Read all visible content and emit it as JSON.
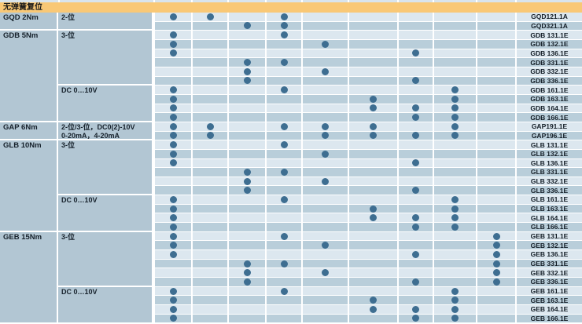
{
  "page_title": "无弹簧复位",
  "colors": {
    "header_bg": "#F9C876",
    "row_light": "#DCE7EF",
    "row_dark": "#B9CEDA",
    "label_bg": "#B2C6D3",
    "dot": "#3E6E91",
    "text": "#131D26"
  },
  "table": {
    "dot_column_count": 9,
    "groups": [
      {
        "family": "GQD 2Nm",
        "sections": [
          {
            "lines": [
              "2-位"
            ],
            "row_count": 2
          }
        ]
      },
      {
        "family": "GDB 5Nm",
        "sections": [
          {
            "lines": [
              "3-位"
            ],
            "row_count": 6
          },
          {
            "lines": [
              "DC 0…10V"
            ],
            "row_count": 4
          }
        ]
      },
      {
        "family": "GAP 6Nm",
        "sections": [
          {
            "lines": [
              "2-位/3-位，DC0(2)-10V",
              "0-20mA，4-20mA"
            ],
            "row_count": 2
          }
        ]
      },
      {
        "family": "GLB 10Nm",
        "sections": [
          {
            "lines": [
              "3-位"
            ],
            "row_count": 6
          },
          {
            "lines": [
              "DC 0…10V"
            ],
            "row_count": 4
          }
        ]
      },
      {
        "family": "GEB 15Nm",
        "sections": [
          {
            "lines": [
              "3-位"
            ],
            "row_count": 6
          },
          {
            "lines": [
              "DC 0…10V"
            ],
            "row_count": 4
          }
        ]
      }
    ],
    "rows": [
      {
        "code": "GQD121.1A",
        "dots": [
          1,
          2,
          4
        ]
      },
      {
        "code": "GQD321.1A",
        "dots": [
          3,
          4
        ]
      },
      {
        "code": "GDB 131.1E",
        "dots": [
          1,
          4
        ]
      },
      {
        "code": "GDB 132.1E",
        "dots": [
          1,
          5
        ]
      },
      {
        "code": "GDB 136.1E",
        "dots": [
          1,
          7
        ]
      },
      {
        "code": "GDB 331.1E",
        "dots": [
          3,
          4
        ]
      },
      {
        "code": "GDB 332.1E",
        "dots": [
          3,
          5
        ]
      },
      {
        "code": "GDB 336.1E",
        "dots": [
          3,
          7
        ]
      },
      {
        "code": "GDB 161.1E",
        "dots": [
          1,
          4,
          8
        ]
      },
      {
        "code": "GDB 163.1E",
        "dots": [
          1,
          6,
          8
        ]
      },
      {
        "code": "GDB 164.1E",
        "dots": [
          1,
          6,
          7,
          8
        ]
      },
      {
        "code": "GDB 166.1E",
        "dots": [
          1,
          7,
          8
        ]
      },
      {
        "code": "GAP191.1E",
        "dots": [
          1,
          2,
          4,
          5,
          6,
          8
        ]
      },
      {
        "code": "GAP196.1E",
        "dots": [
          1,
          2,
          5,
          6,
          7,
          8
        ]
      },
      {
        "code": "GLB 131.1E",
        "dots": [
          1,
          4
        ]
      },
      {
        "code": "GLB 132.1E",
        "dots": [
          1,
          5
        ]
      },
      {
        "code": "GLB 136.1E",
        "dots": [
          1,
          7
        ]
      },
      {
        "code": "GLB 331.1E",
        "dots": [
          3,
          4
        ]
      },
      {
        "code": "GLB 332.1E",
        "dots": [
          3,
          5
        ]
      },
      {
        "code": "GLB 336.1E",
        "dots": [
          3,
          7
        ]
      },
      {
        "code": "GLB 161.1E",
        "dots": [
          1,
          4,
          8
        ]
      },
      {
        "code": "GLB 163.1E",
        "dots": [
          1,
          6,
          8
        ]
      },
      {
        "code": "GLB 164.1E",
        "dots": [
          1,
          6,
          7,
          8
        ]
      },
      {
        "code": "GLB 166.1E",
        "dots": [
          1,
          7,
          8
        ]
      },
      {
        "code": "GEB 131.1E",
        "dots": [
          1,
          4,
          9
        ]
      },
      {
        "code": "GEB 132.1E",
        "dots": [
          1,
          5,
          9
        ]
      },
      {
        "code": "GEB 136.1E",
        "dots": [
          1,
          7,
          9
        ]
      },
      {
        "code": "GEB 331.1E",
        "dots": [
          3,
          4,
          9
        ]
      },
      {
        "code": "GEB 332.1E",
        "dots": [
          3,
          5,
          9
        ]
      },
      {
        "code": "GEB 336.1E",
        "dots": [
          3,
          7,
          9
        ]
      },
      {
        "code": "GEB 161.1E",
        "dots": [
          1,
          4,
          8
        ]
      },
      {
        "code": "GEB 163.1E",
        "dots": [
          1,
          6,
          8
        ]
      },
      {
        "code": "GEB 164.1E",
        "dots": [
          1,
          6,
          7,
          8
        ]
      },
      {
        "code": "GEB 166.1E",
        "dots": [
          1,
          7,
          8
        ]
      }
    ]
  }
}
